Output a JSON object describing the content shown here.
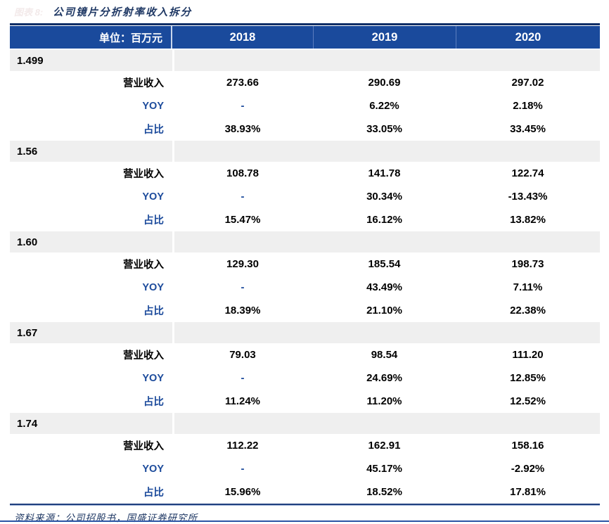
{
  "figure": {
    "label": "图表 8:",
    "title": "公司镜片分折射率收入拆分"
  },
  "table": {
    "unit_header": "单位：百万元",
    "year_columns": [
      "2018",
      "2019",
      "2020"
    ],
    "row_labels": {
      "revenue": "营业收入",
      "yoy": "YOY",
      "share": "占比"
    },
    "sections": [
      {
        "name": "1.499",
        "revenue": [
          "273.66",
          "290.69",
          "297.02"
        ],
        "yoy": [
          "-",
          "6.22%",
          "2.18%"
        ],
        "share": [
          "38.93%",
          "33.05%",
          "33.45%"
        ]
      },
      {
        "name": "1.56",
        "revenue": [
          "108.78",
          "141.78",
          "122.74"
        ],
        "yoy": [
          "-",
          "30.34%",
          "-13.43%"
        ],
        "share": [
          "15.47%",
          "16.12%",
          "13.82%"
        ]
      },
      {
        "name": "1.60",
        "revenue": [
          "129.30",
          "185.54",
          "198.73"
        ],
        "yoy": [
          "-",
          "43.49%",
          "7.11%"
        ],
        "share": [
          "18.39%",
          "21.10%",
          "22.38%"
        ]
      },
      {
        "name": "1.67",
        "revenue": [
          "79.03",
          "98.54",
          "111.20"
        ],
        "yoy": [
          "-",
          "24.69%",
          "12.85%"
        ],
        "share": [
          "11.24%",
          "11.20%",
          "12.52%"
        ]
      },
      {
        "name": "1.74",
        "revenue": [
          "112.22",
          "162.91",
          "158.16"
        ],
        "yoy": [
          "-",
          "45.17%",
          "-2.92%"
        ],
        "share": [
          "15.96%",
          "18.52%",
          "17.81%"
        ]
      }
    ]
  },
  "footer": {
    "source": "资料来源：公司招股书，国盛证券研究所"
  },
  "colors": {
    "header_bg": "#1a4a9c",
    "accent_blue": "#1b4a9b",
    "title_navy": "#1f3864",
    "top_rule": "#0d2e66",
    "section_bg": "#efefef",
    "bottom_rule": "#1f3f7e",
    "page_bottom_line": "#2b55a5",
    "faint_figure_label": "#f3eaea"
  }
}
